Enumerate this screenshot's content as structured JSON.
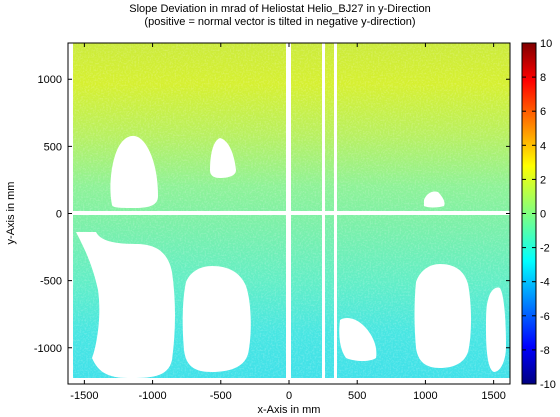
{
  "chart_data": {
    "type": "heatmap",
    "title": "Slope Deviation in mrad of Heliostat Helio_BJ27 in y-Direction",
    "subtitle": "(positive = normal vector is tilted in negative y-direction)",
    "xlabel": "x-Axis in mm",
    "ylabel": "y-Axis in mm",
    "xlim": [
      -1620,
      1620
    ],
    "ylim": [
      -1270,
      1270
    ],
    "x_ticks": [
      -1500,
      -1000,
      -500,
      0,
      500,
      1000,
      1500
    ],
    "y_ticks": [
      -1000,
      -500,
      0,
      500,
      1000
    ],
    "x_tick_labels": [
      "-1500",
      "-1000",
      "-500",
      "0",
      "500",
      "1000",
      "1500"
    ],
    "y_tick_labels": [
      "-1000",
      "-500",
      "0",
      "500",
      "1000"
    ],
    "colorbar": {
      "range": [
        -10,
        10
      ],
      "ticks": [
        10,
        8,
        6,
        4,
        2,
        0,
        -2,
        -4,
        -6,
        -8,
        -10
      ],
      "tick_labels": [
        "10",
        "8",
        "6",
        "4",
        "2",
        "0",
        "-2",
        "-4",
        "-6",
        "-8",
        "-10"
      ],
      "colormap": "jet"
    },
    "approx_value_bands": [
      {
        "y_range": [
          600,
          1270
        ],
        "value": 2.5
      },
      {
        "y_range": [
          0,
          600
        ],
        "value": 0.5
      },
      {
        "y_range": [
          -700,
          0
        ],
        "value": -0.8
      },
      {
        "y_range": [
          -1270,
          -700
        ],
        "value": -2.2
      }
    ],
    "grid": false
  }
}
